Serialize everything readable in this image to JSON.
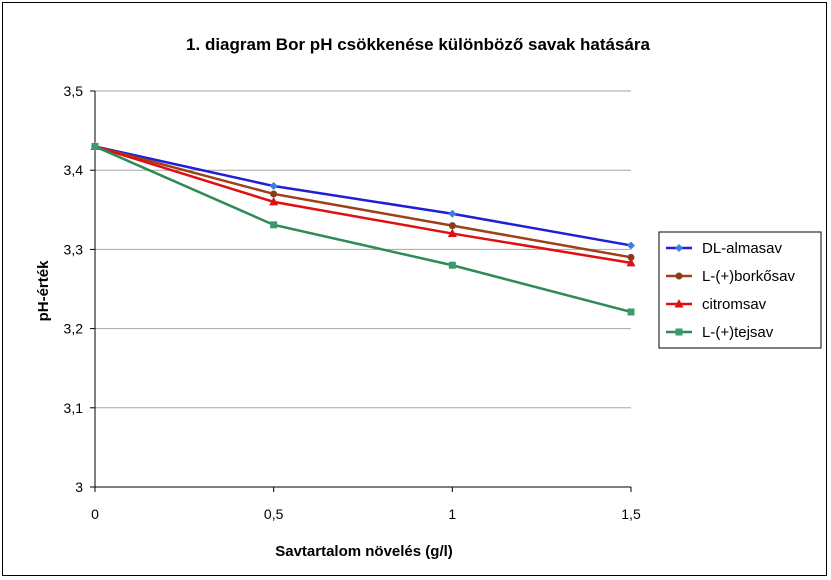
{
  "chart_data": {
    "type": "line",
    "title": "1. diagram Bor pH csökkenése különböző savak hatására",
    "xlabel": "Savtartalom növelés (g/l)",
    "ylabel": "pH-érték",
    "x": [
      0,
      0.5,
      1,
      1.5
    ],
    "x_tick_labels": [
      "0",
      "0,5",
      "1",
      "1,5"
    ],
    "ylim": [
      3,
      3.5
    ],
    "y_ticks": [
      3,
      3.1,
      3.2,
      3.3,
      3.4,
      3.5
    ],
    "y_tick_labels": [
      "3",
      "3,1",
      "3,2",
      "3,3",
      "3,4",
      "3,5"
    ],
    "grid": "horizontal",
    "legend_position": "right",
    "series": [
      {
        "name": "DL-almasav",
        "values": [
          3.43,
          3.38,
          3.345,
          3.305
        ],
        "color": "#1f1fd6",
        "marker_color": "#3f7fe0",
        "marker": "diamond"
      },
      {
        "name": "L-(+)borkősav",
        "values": [
          3.43,
          3.37,
          3.33,
          3.29
        ],
        "color": "#a0401a",
        "marker_color": "#8b3a1a",
        "marker": "circle"
      },
      {
        "name": "citromsav",
        "values": [
          3.43,
          3.36,
          3.32,
          3.283
        ],
        "color": "#e01010",
        "marker_color": "#e01010",
        "marker": "triangle"
      },
      {
        "name": "L-(+)tejsav",
        "values": [
          3.43,
          3.331,
          3.28,
          3.221
        ],
        "color": "#2e8b57",
        "marker_color": "#3a9a6a",
        "marker": "square"
      }
    ]
  }
}
